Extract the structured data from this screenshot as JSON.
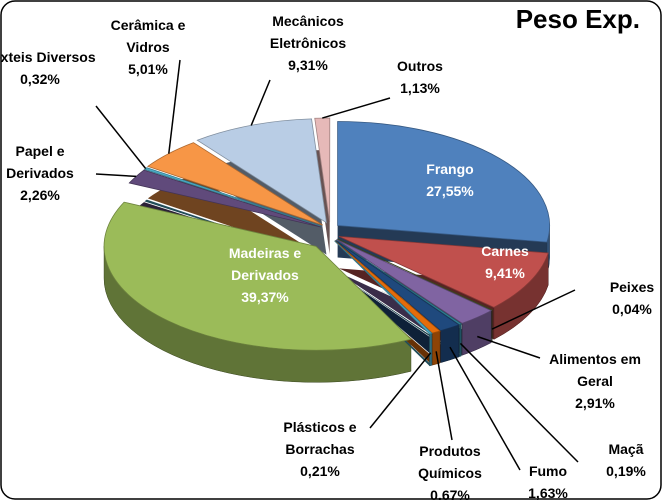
{
  "chart_data": {
    "type": "pie3d",
    "title": "Peso Exp.",
    "categories": [
      "Frango",
      "Carnes",
      "Peixes",
      "Alimentos em Geral",
      "Maçã",
      "Fumo",
      "Produtos Químicos",
      "Plásticos e Borrachas",
      "Madeiras e Derivados",
      "Papel e Derivados",
      "Têxteis Diversos",
      "Cerâmica e Vidros",
      "Mecânicos Eletrônicos",
      "Outros"
    ],
    "values": [
      27.55,
      9.41,
      0.04,
      2.91,
      0.19,
      1.63,
      0.67,
      0.21,
      39.37,
      2.26,
      0.32,
      5.01,
      9.31,
      1.13
    ],
    "value_labels": [
      "27,55%",
      "9,41%",
      "0,04%",
      "2,91%",
      "0,19%",
      "1,63%",
      "0,67%",
      "0,21%",
      "39,37%",
      "2,26%",
      "0,32%",
      "5,01%",
      "9,31%",
      "1,13%"
    ],
    "colors": [
      "#4f81bd",
      "#c0504d",
      "#4f6228",
      "#8064a2",
      "#31859c",
      "#1f497d",
      "#e46c0a",
      "#4bacc6",
      "#9bbb59",
      "#604a7b",
      "#4bacc6",
      "#f79646",
      "#b9cde5",
      "#e6b9b8"
    ]
  }
}
